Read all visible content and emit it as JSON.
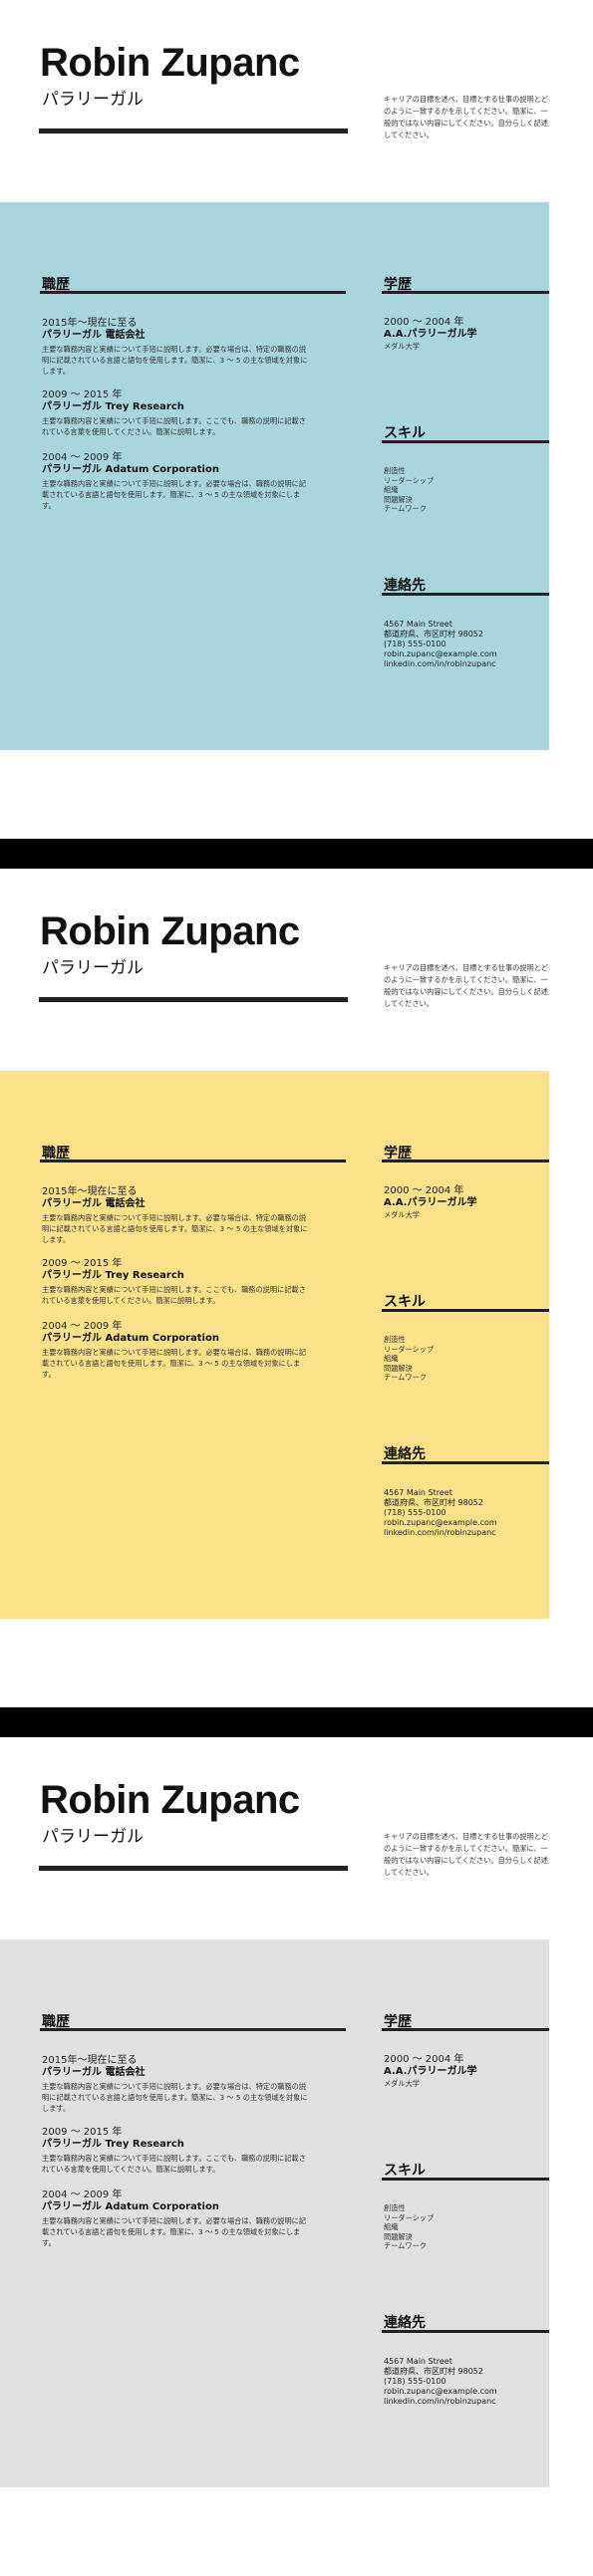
{
  "resume": {
    "name": "Robin Zupanc",
    "title": "パラリーガル",
    "objective": "キャリアの目標を述べ、目標とする仕事の説明とどのように一致するかを示してください。簡潔に、一般的ではない内容にしてください。自分らしく記述してください。",
    "experience_heading": "職歴",
    "education_heading": "学歴",
    "skills_heading": "スキル",
    "contact_heading": "連絡先",
    "jobs": [
      {
        "date": "2015年～現在に至る",
        "company": "パラリーガル 電話会社",
        "description": "主要な職務内容と実績について手短に説明します。必要な場合は、特定の職務の説明に記載されている言語と語句を使用します。簡潔に、3 ～ 5 の主な領域を対象にします。"
      },
      {
        "date": "2009 ～ 2015 年",
        "company": "パラリーガル Trey Research",
        "description": "主要な職務内容と実績について手短に説明します。ここでも、職務の説明に記載されている言葉を使用してください。簡潔に説明します。"
      },
      {
        "date": "2004 ～ 2009 年",
        "company": "パラリーガル Adatum Corporation",
        "description": "主要な職務内容と実績について手短に説明します。必要な場合は、職務の説明に記載されている言語と語句を使用します。簡潔に、3 ～ 5 の主な領域を対象にします。"
      }
    ],
    "education": {
      "date": "2000 ～ 2004 年",
      "degree": "A.A.パラリーガル学",
      "school": "メダル大学"
    },
    "skills": [
      "創造性",
      "リーダーシップ",
      "組織",
      "問題解決",
      "チームワーク"
    ],
    "contact": {
      "address1": "4567 Main Street",
      "address2": "都道府県、市区町村 98052",
      "phone": "(718) 555-0100",
      "email": "robin.zupanc@example.com",
      "linkedin": "linkedin.com/in/robinzupanc"
    }
  },
  "variants": [
    {
      "band_color": "#a9d6dd"
    },
    {
      "band_color": "#fbe18a"
    },
    {
      "band_color": "#e0e0e0"
    }
  ]
}
